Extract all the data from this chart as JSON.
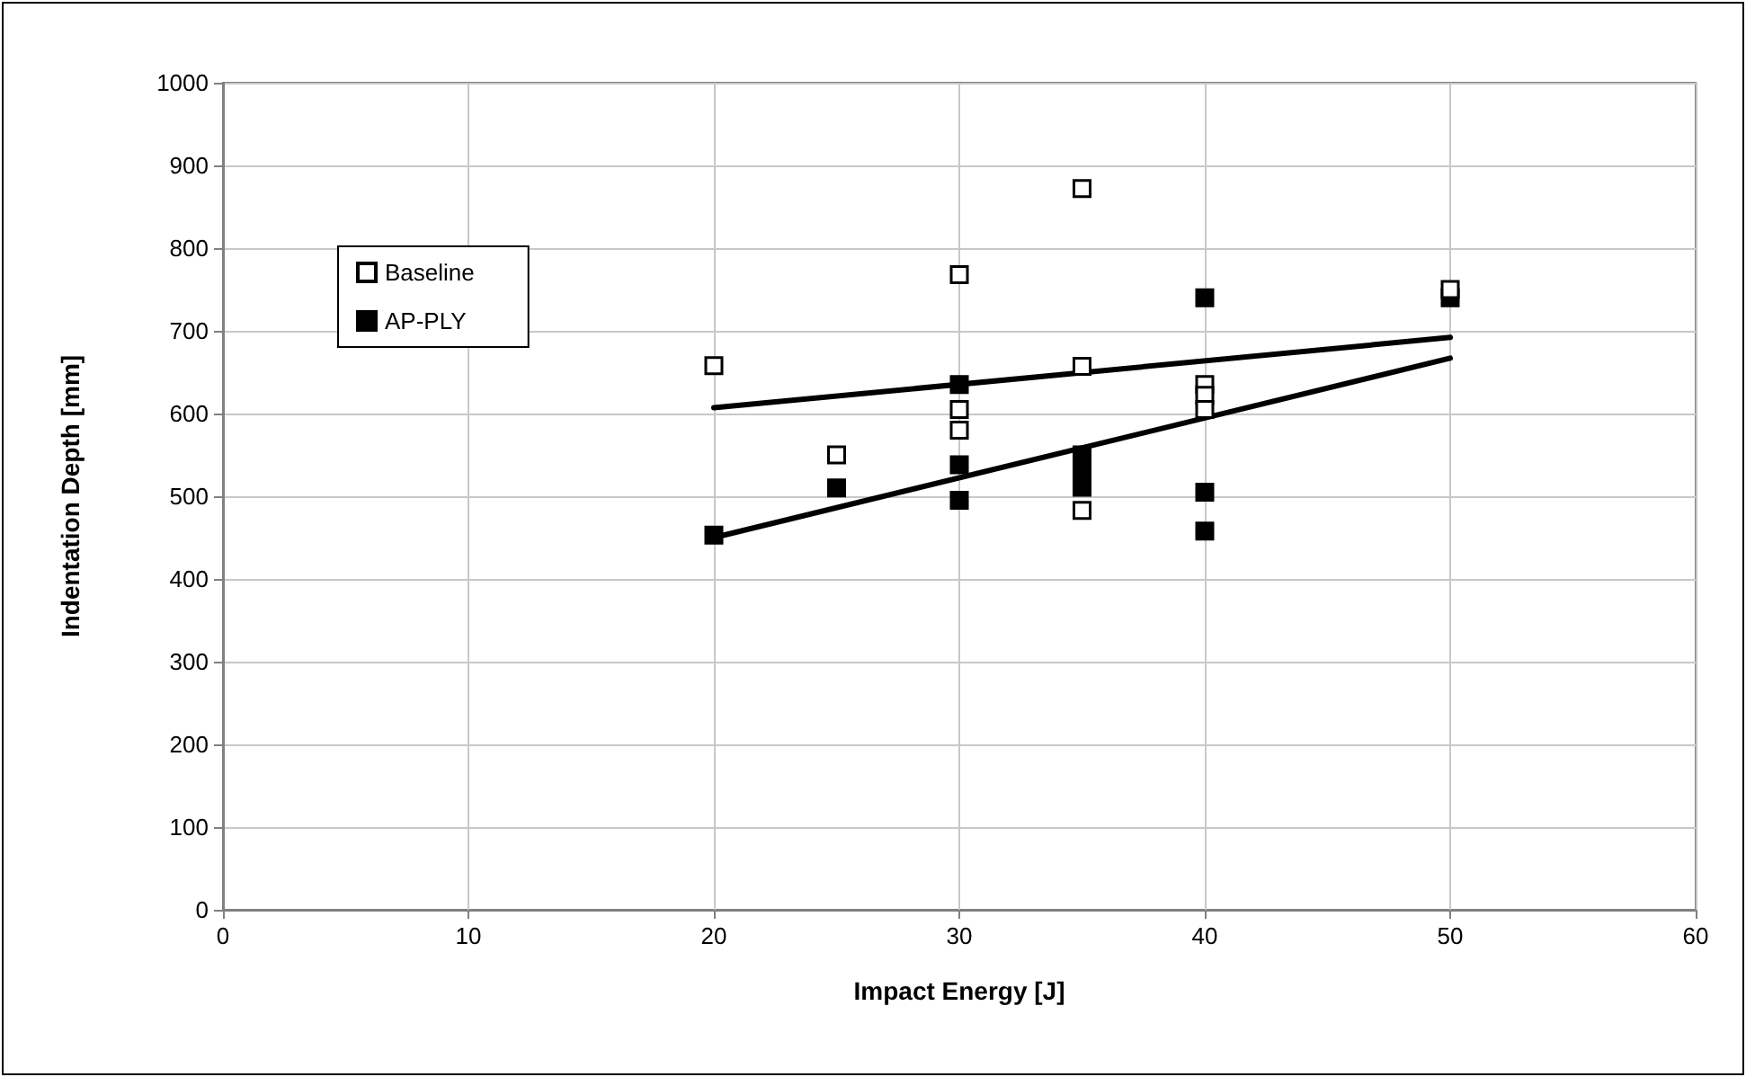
{
  "chart_data": {
    "type": "scatter",
    "xlabel": "Impact Energy [J]",
    "ylabel": "Indentation Depth [mm]",
    "xlim": [
      0,
      60
    ],
    "xticks": [
      0,
      10,
      20,
      30,
      40,
      50,
      60
    ],
    "ylim": [
      0,
      1000
    ],
    "yticks": [
      0,
      100,
      200,
      300,
      400,
      500,
      600,
      700,
      800,
      900,
      1000
    ],
    "grid": true,
    "legend": "top left",
    "series": [
      {
        "name": "Baseline",
        "color": "#ffffff",
        "marker": "square",
        "x": [
          20,
          25,
          30,
          30,
          30,
          35,
          35,
          35,
          40,
          40,
          40,
          50
        ],
        "values": [
          658,
          550,
          768,
          605,
          580,
          872,
          657,
          483,
          635,
          622,
          605,
          750
        ]
      },
      {
        "name": "AP-PLY",
        "color": "#000000",
        "marker": "square",
        "x": [
          20,
          25,
          30,
          30,
          30,
          35,
          35,
          35,
          40,
          40,
          40,
          50
        ],
        "values": [
          453,
          510,
          635,
          538,
          495,
          550,
          530,
          511,
          740,
          505,
          458,
          740
        ]
      },
      {
        "type": "line",
        "color": "#000000",
        "marker": "none",
        "x": [
          20,
          50
        ],
        "values": [
          607,
          692
        ]
      },
      {
        "type": "line",
        "color": "#000000",
        "marker": "none",
        "x": [
          20,
          50
        ],
        "values": [
          450,
          667
        ]
      }
    ]
  }
}
